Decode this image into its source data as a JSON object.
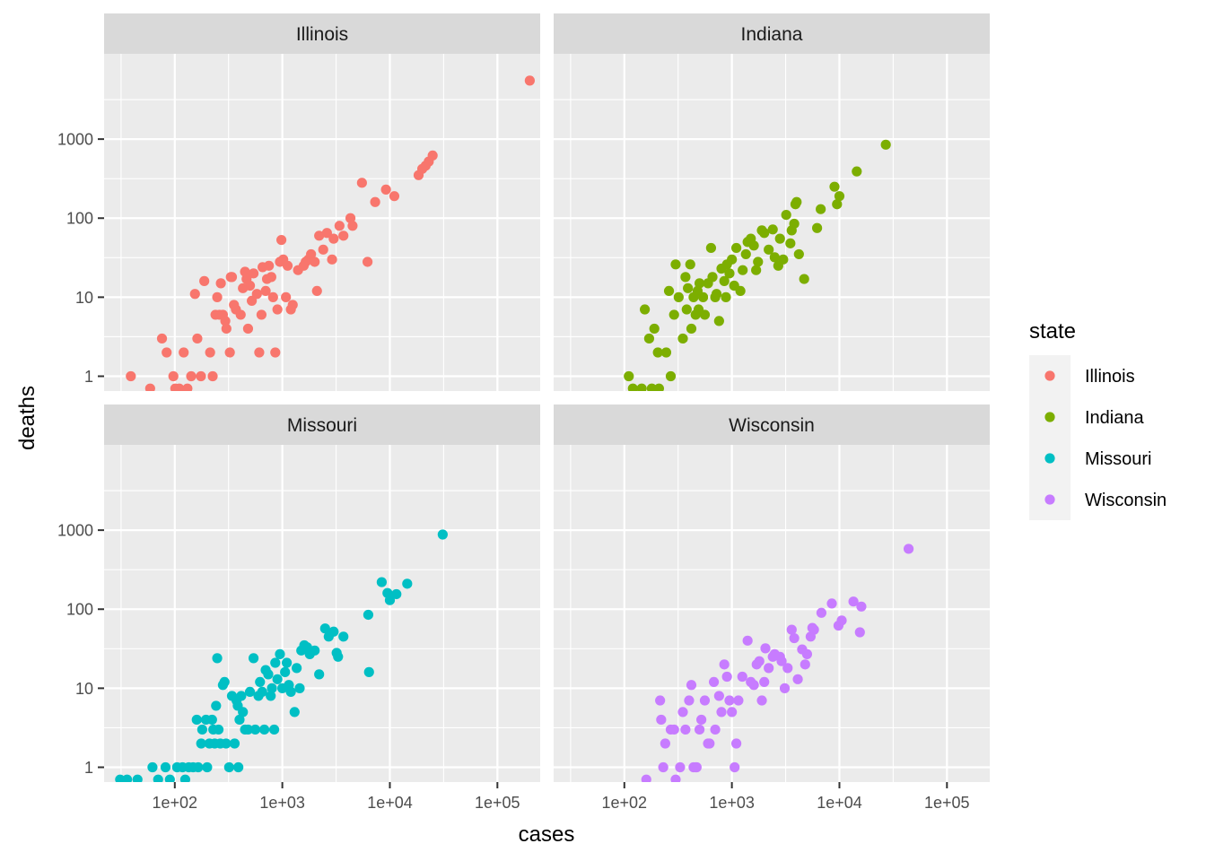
{
  "chart_data": {
    "type": "scatter",
    "xlabel": "cases",
    "ylabel": "deaths",
    "x_scale": "log10",
    "y_scale": "log10",
    "xlim": [
      22,
      250000
    ],
    "ylim": [
      0.65,
      12000
    ],
    "x_ticks": [
      100,
      1000,
      10000,
      100000
    ],
    "x_tick_labels": [
      "1e+02",
      "1e+03",
      "1e+04",
      "1e+05"
    ],
    "y_ticks": [
      1,
      10,
      100,
      1000
    ],
    "y_tick_labels": [
      "1",
      "10",
      "100",
      "1000"
    ],
    "grid": true,
    "legend": {
      "title": "state",
      "position": "right",
      "entries": [
        "Illinois",
        "Indiana",
        "Missouri",
        "Wisconsin"
      ]
    },
    "colors": {
      "Illinois": "#F8766D",
      "Indiana": "#7CAE00",
      "Missouri": "#00BFC4",
      "Wisconsin": "#C77CFF"
    },
    "panel_background": "#EBEBEB",
    "strip_background": "#D9D9D9",
    "panels": [
      {
        "label": "Illinois",
        "series": "Illinois",
        "points": [
          [
            39,
            1
          ],
          [
            59,
            0.7
          ],
          [
            76,
            3
          ],
          [
            84,
            2
          ],
          [
            97,
            1
          ],
          [
            101,
            0.7
          ],
          [
            110,
            0.7
          ],
          [
            121,
            2
          ],
          [
            131,
            0.7
          ],
          [
            142,
            1
          ],
          [
            154,
            11
          ],
          [
            162,
            3
          ],
          [
            175,
            1
          ],
          [
            188,
            16
          ],
          [
            213,
            2
          ],
          [
            225,
            1
          ],
          [
            239,
            6
          ],
          [
            248,
            10
          ],
          [
            260,
            6
          ],
          [
            268,
            15
          ],
          [
            280,
            6
          ],
          [
            295,
            5
          ],
          [
            302,
            4
          ],
          [
            325,
            2
          ],
          [
            332,
            18
          ],
          [
            340,
            18
          ],
          [
            355,
            8
          ],
          [
            370,
            7
          ],
          [
            410,
            6
          ],
          [
            430,
            13
          ],
          [
            450,
            21
          ],
          [
            465,
            17
          ],
          [
            480,
            4
          ],
          [
            500,
            14
          ],
          [
            520,
            9
          ],
          [
            540,
            20
          ],
          [
            580,
            11
          ],
          [
            610,
            2
          ],
          [
            640,
            6
          ],
          [
            655,
            24
          ],
          [
            700,
            12
          ],
          [
            720,
            17
          ],
          [
            750,
            25
          ],
          [
            790,
            18
          ],
          [
            820,
            10
          ],
          [
            860,
            2
          ],
          [
            900,
            7
          ],
          [
            950,
            28
          ],
          [
            980,
            53
          ],
          [
            1020,
            30
          ],
          [
            1080,
            10
          ],
          [
            1120,
            25
          ],
          [
            1200,
            7
          ],
          [
            1250,
            8
          ],
          [
            1400,
            22
          ],
          [
            1580,
            25
          ],
          [
            1650,
            28
          ],
          [
            1750,
            30
          ],
          [
            1850,
            35
          ],
          [
            2000,
            28
          ],
          [
            2100,
            12
          ],
          [
            2200,
            60
          ],
          [
            2400,
            40
          ],
          [
            2600,
            65
          ],
          [
            2900,
            30
          ],
          [
            3000,
            55
          ],
          [
            3400,
            80
          ],
          [
            3700,
            60
          ],
          [
            4300,
            100
          ],
          [
            4500,
            80
          ],
          [
            5500,
            280
          ],
          [
            6200,
            28
          ],
          [
            7300,
            160
          ],
          [
            9200,
            230
          ],
          [
            11000,
            190
          ],
          [
            18500,
            350
          ],
          [
            20000,
            420
          ],
          [
            21500,
            460
          ],
          [
            23000,
            520
          ],
          [
            25000,
            620
          ],
          [
            200000,
            5500
          ]
        ]
      },
      {
        "label": "Indiana",
        "series": "Indiana",
        "points": [
          [
            110,
            1
          ],
          [
            120,
            0.7
          ],
          [
            145,
            0.7
          ],
          [
            155,
            7
          ],
          [
            170,
            3
          ],
          [
            180,
            0.7
          ],
          [
            190,
            4
          ],
          [
            205,
            2
          ],
          [
            210,
            0.7
          ],
          [
            245,
            2
          ],
          [
            260,
            12
          ],
          [
            270,
            1
          ],
          [
            290,
            6
          ],
          [
            300,
            26
          ],
          [
            320,
            10
          ],
          [
            350,
            3
          ],
          [
            370,
            18
          ],
          [
            380,
            7
          ],
          [
            390,
            13
          ],
          [
            410,
            26
          ],
          [
            420,
            4
          ],
          [
            440,
            10
          ],
          [
            460,
            6
          ],
          [
            480,
            12
          ],
          [
            490,
            7
          ],
          [
            500,
            15
          ],
          [
            540,
            10
          ],
          [
            560,
            6
          ],
          [
            600,
            15
          ],
          [
            640,
            42
          ],
          [
            660,
            18
          ],
          [
            700,
            10
          ],
          [
            720,
            11
          ],
          [
            760,
            5
          ],
          [
            800,
            23
          ],
          [
            850,
            16
          ],
          [
            880,
            10
          ],
          [
            900,
            26
          ],
          [
            950,
            20
          ],
          [
            1000,
            30
          ],
          [
            1050,
            14
          ],
          [
            1100,
            42
          ],
          [
            1200,
            12
          ],
          [
            1260,
            22
          ],
          [
            1350,
            35
          ],
          [
            1400,
            50
          ],
          [
            1500,
            55
          ],
          [
            1600,
            45
          ],
          [
            1680,
            22
          ],
          [
            1750,
            28
          ],
          [
            1900,
            70
          ],
          [
            2000,
            65
          ],
          [
            2200,
            40
          ],
          [
            2400,
            72
          ],
          [
            2500,
            32
          ],
          [
            2700,
            25
          ],
          [
            2800,
            55
          ],
          [
            3000,
            30
          ],
          [
            3200,
            110
          ],
          [
            3500,
            48
          ],
          [
            3600,
            70
          ],
          [
            3800,
            85
          ],
          [
            3900,
            150
          ],
          [
            4000,
            160
          ],
          [
            4200,
            35
          ],
          [
            4700,
            17
          ],
          [
            6200,
            75
          ],
          [
            6700,
            130
          ],
          [
            9000,
            250
          ],
          [
            9500,
            150
          ],
          [
            10000,
            190
          ],
          [
            14500,
            390
          ],
          [
            27000,
            850
          ]
        ]
      },
      {
        "label": "Missouri",
        "series": "Missouri",
        "points": [
          [
            31,
            0.7
          ],
          [
            36,
            0.7
          ],
          [
            45,
            0.7
          ],
          [
            62,
            1
          ],
          [
            70,
            0.7
          ],
          [
            82,
            1
          ],
          [
            90,
            0.7
          ],
          [
            105,
            1
          ],
          [
            118,
            1
          ],
          [
            125,
            0.7
          ],
          [
            135,
            1
          ],
          [
            148,
            1
          ],
          [
            160,
            4
          ],
          [
            165,
            1
          ],
          [
            176,
            2
          ],
          [
            180,
            3
          ],
          [
            195,
            4
          ],
          [
            200,
            1
          ],
          [
            210,
            2
          ],
          [
            222,
            4
          ],
          [
            228,
            3
          ],
          [
            235,
            2
          ],
          [
            242,
            6
          ],
          [
            248,
            24
          ],
          [
            255,
            3
          ],
          [
            265,
            2
          ],
          [
            280,
            11
          ],
          [
            290,
            12
          ],
          [
            300,
            2
          ],
          [
            320,
            1
          ],
          [
            340,
            8
          ],
          [
            360,
            2
          ],
          [
            375,
            7
          ],
          [
            385,
            6
          ],
          [
            390,
            1
          ],
          [
            400,
            4
          ],
          [
            415,
            8
          ],
          [
            430,
            5
          ],
          [
            450,
            3
          ],
          [
            480,
            3
          ],
          [
            500,
            9
          ],
          [
            540,
            24
          ],
          [
            560,
            3
          ],
          [
            600,
            8
          ],
          [
            620,
            12
          ],
          [
            650,
            9
          ],
          [
            680,
            3
          ],
          [
            700,
            17
          ],
          [
            740,
            15
          ],
          [
            780,
            8
          ],
          [
            800,
            10
          ],
          [
            840,
            3
          ],
          [
            860,
            21
          ],
          [
            900,
            13
          ],
          [
            950,
            27
          ],
          [
            1000,
            10
          ],
          [
            1060,
            16
          ],
          [
            1100,
            21
          ],
          [
            1150,
            11
          ],
          [
            1200,
            9
          ],
          [
            1300,
            5
          ],
          [
            1360,
            18
          ],
          [
            1450,
            10
          ],
          [
            1500,
            30
          ],
          [
            1600,
            35
          ],
          [
            1700,
            33
          ],
          [
            1800,
            27
          ],
          [
            2000,
            30
          ],
          [
            2200,
            15
          ],
          [
            2500,
            57
          ],
          [
            2700,
            45
          ],
          [
            3000,
            52
          ],
          [
            3200,
            28
          ],
          [
            3300,
            25
          ],
          [
            3700,
            45
          ],
          [
            6300,
            85
          ],
          [
            6400,
            16
          ],
          [
            8400,
            220
          ],
          [
            9500,
            160
          ],
          [
            10000,
            130
          ],
          [
            11500,
            155
          ],
          [
            14500,
            210
          ],
          [
            31000,
            880
          ]
        ]
      },
      {
        "label": "Wisconsin",
        "series": "Wisconsin",
        "points": [
          [
            160,
            0.7
          ],
          [
            215,
            7
          ],
          [
            220,
            4
          ],
          [
            230,
            1
          ],
          [
            240,
            2
          ],
          [
            270,
            3
          ],
          [
            290,
            3
          ],
          [
            300,
            0.7
          ],
          [
            330,
            1
          ],
          [
            350,
            5
          ],
          [
            370,
            3
          ],
          [
            400,
            7
          ],
          [
            420,
            11
          ],
          [
            440,
            1
          ],
          [
            460,
            1
          ],
          [
            470,
            1
          ],
          [
            500,
            3
          ],
          [
            520,
            4
          ],
          [
            560,
            7
          ],
          [
            600,
            2
          ],
          [
            620,
            2
          ],
          [
            680,
            12
          ],
          [
            700,
            3
          ],
          [
            760,
            8
          ],
          [
            800,
            5
          ],
          [
            850,
            20
          ],
          [
            900,
            14
          ],
          [
            950,
            7
          ],
          [
            1000,
            5
          ],
          [
            1060,
            1
          ],
          [
            1100,
            2
          ],
          [
            1150,
            7
          ],
          [
            1250,
            14
          ],
          [
            1400,
            40
          ],
          [
            1500,
            12
          ],
          [
            1600,
            11
          ],
          [
            1700,
            20
          ],
          [
            1800,
            22
          ],
          [
            1900,
            7
          ],
          [
            2000,
            12
          ],
          [
            2050,
            32
          ],
          [
            2200,
            18
          ],
          [
            2400,
            25
          ],
          [
            2500,
            27
          ],
          [
            2800,
            25
          ],
          [
            2900,
            22
          ],
          [
            3100,
            10
          ],
          [
            3300,
            18
          ],
          [
            3600,
            55
          ],
          [
            3800,
            43
          ],
          [
            4100,
            13
          ],
          [
            4500,
            31
          ],
          [
            4800,
            20
          ],
          [
            5000,
            27
          ],
          [
            5400,
            45
          ],
          [
            5600,
            58
          ],
          [
            5800,
            55
          ],
          [
            6800,
            90
          ],
          [
            8500,
            118
          ],
          [
            9800,
            62
          ],
          [
            10500,
            72
          ],
          [
            13500,
            125
          ],
          [
            15500,
            51
          ],
          [
            16000,
            108
          ],
          [
            44000,
            580
          ]
        ]
      }
    ]
  }
}
